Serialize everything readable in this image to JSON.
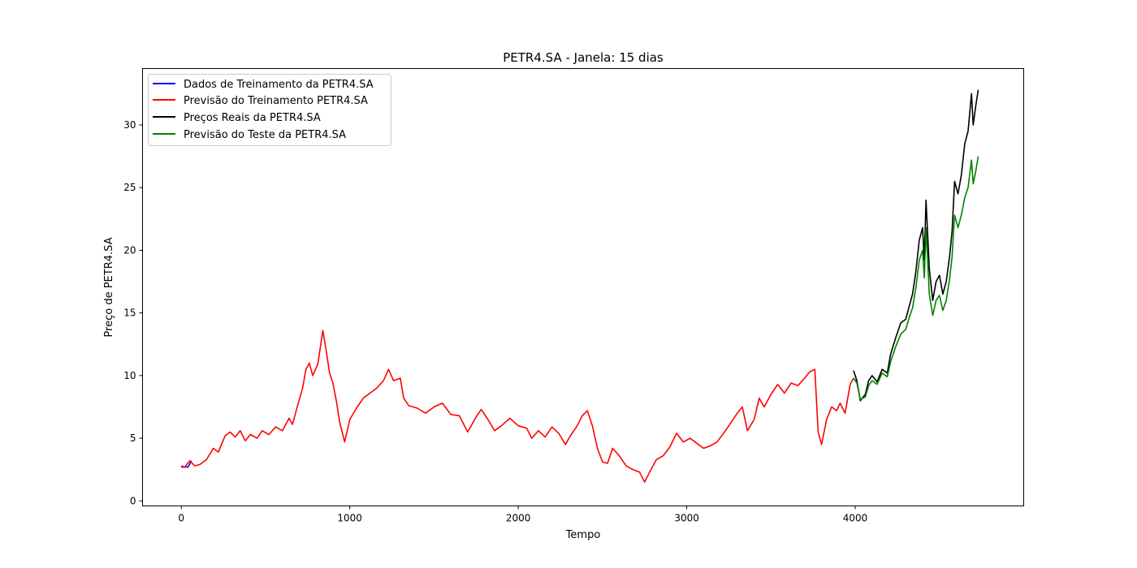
{
  "chart_data": {
    "type": "line",
    "title": "PETR4.SA - Janela: 15 dias",
    "xlabel": "Tempo",
    "ylabel": "Preço de PETR4.SA",
    "xlim": [
      -230,
      5000
    ],
    "ylim": [
      -0.4,
      34.5
    ],
    "xticks": [
      0,
      1000,
      2000,
      3000,
      4000
    ],
    "yticks": [
      0,
      5,
      10,
      15,
      20,
      25,
      30
    ],
    "grid": false,
    "legend_position": "top-left",
    "series": [
      {
        "name": "Dados de Treinamento da PETR4.SA",
        "color": "#0000ff",
        "points": [
          [
            0,
            2.7
          ],
          [
            40,
            2.7
          ],
          [
            60,
            3.2
          ]
        ]
      },
      {
        "name": "Previsão do Treinamento PETR4.SA",
        "color": "#ff0000",
        "points": [
          [
            0,
            2.8
          ],
          [
            20,
            2.7
          ],
          [
            50,
            3.2
          ],
          [
            80,
            2.8
          ],
          [
            110,
            2.9
          ],
          [
            150,
            3.3
          ],
          [
            190,
            4.2
          ],
          [
            220,
            3.9
          ],
          [
            260,
            5.2
          ],
          [
            290,
            5.5
          ],
          [
            320,
            5.1
          ],
          [
            350,
            5.6
          ],
          [
            380,
            4.8
          ],
          [
            410,
            5.3
          ],
          [
            450,
            5.0
          ],
          [
            480,
            5.6
          ],
          [
            520,
            5.3
          ],
          [
            560,
            5.9
          ],
          [
            600,
            5.6
          ],
          [
            640,
            6.6
          ],
          [
            660,
            6.1
          ],
          [
            690,
            7.6
          ],
          [
            720,
            9.0
          ],
          [
            740,
            10.5
          ],
          [
            760,
            11.0
          ],
          [
            780,
            10.0
          ],
          [
            810,
            10.9
          ],
          [
            840,
            13.6
          ],
          [
            860,
            12.0
          ],
          [
            880,
            10.2
          ],
          [
            900,
            9.4
          ],
          [
            920,
            8.0
          ],
          [
            940,
            6.3
          ],
          [
            970,
            4.7
          ],
          [
            1000,
            6.5
          ],
          [
            1040,
            7.4
          ],
          [
            1080,
            8.2
          ],
          [
            1120,
            8.6
          ],
          [
            1160,
            9.0
          ],
          [
            1200,
            9.6
          ],
          [
            1230,
            10.5
          ],
          [
            1260,
            9.6
          ],
          [
            1300,
            9.8
          ],
          [
            1320,
            8.2
          ],
          [
            1350,
            7.6
          ],
          [
            1400,
            7.4
          ],
          [
            1450,
            7.0
          ],
          [
            1500,
            7.5
          ],
          [
            1550,
            7.8
          ],
          [
            1600,
            6.9
          ],
          [
            1650,
            6.8
          ],
          [
            1700,
            5.5
          ],
          [
            1750,
            6.7
          ],
          [
            1780,
            7.3
          ],
          [
            1820,
            6.5
          ],
          [
            1860,
            5.6
          ],
          [
            1900,
            6.0
          ],
          [
            1950,
            6.6
          ],
          [
            2000,
            6.0
          ],
          [
            2050,
            5.8
          ],
          [
            2080,
            5.0
          ],
          [
            2120,
            5.6
          ],
          [
            2160,
            5.1
          ],
          [
            2200,
            5.9
          ],
          [
            2240,
            5.4
          ],
          [
            2280,
            4.5
          ],
          [
            2310,
            5.2
          ],
          [
            2350,
            6.0
          ],
          [
            2380,
            6.8
          ],
          [
            2410,
            7.2
          ],
          [
            2440,
            6.0
          ],
          [
            2470,
            4.2
          ],
          [
            2500,
            3.1
          ],
          [
            2530,
            3.0
          ],
          [
            2560,
            4.2
          ],
          [
            2600,
            3.6
          ],
          [
            2640,
            2.8
          ],
          [
            2680,
            2.5
          ],
          [
            2720,
            2.3
          ],
          [
            2750,
            1.5
          ],
          [
            2780,
            2.3
          ],
          [
            2820,
            3.3
          ],
          [
            2860,
            3.6
          ],
          [
            2900,
            4.3
          ],
          [
            2940,
            5.4
          ],
          [
            2980,
            4.7
          ],
          [
            3020,
            5.0
          ],
          [
            3060,
            4.6
          ],
          [
            3100,
            4.2
          ],
          [
            3140,
            4.4
          ],
          [
            3180,
            4.7
          ],
          [
            3230,
            5.6
          ],
          [
            3260,
            6.2
          ],
          [
            3300,
            7.0
          ],
          [
            3330,
            7.5
          ],
          [
            3360,
            5.6
          ],
          [
            3400,
            6.5
          ],
          [
            3430,
            8.2
          ],
          [
            3460,
            7.5
          ],
          [
            3500,
            8.5
          ],
          [
            3540,
            9.3
          ],
          [
            3580,
            8.6
          ],
          [
            3620,
            9.4
          ],
          [
            3660,
            9.2
          ],
          [
            3700,
            9.8
          ],
          [
            3730,
            10.3
          ],
          [
            3760,
            10.5
          ],
          [
            3780,
            5.5
          ],
          [
            3800,
            4.5
          ],
          [
            3830,
            6.5
          ],
          [
            3860,
            7.5
          ],
          [
            3890,
            7.2
          ],
          [
            3910,
            7.8
          ],
          [
            3940,
            7.0
          ],
          [
            3970,
            9.3
          ],
          [
            3990,
            9.8
          ]
        ]
      },
      {
        "name": "Preços Reais da PETR4.SA",
        "color": "#000000",
        "points": [
          [
            3990,
            10.4
          ],
          [
            4010,
            9.6
          ],
          [
            4030,
            8.0
          ],
          [
            4060,
            8.5
          ],
          [
            4080,
            9.6
          ],
          [
            4100,
            10.0
          ],
          [
            4130,
            9.5
          ],
          [
            4160,
            10.5
          ],
          [
            4190,
            10.2
          ],
          [
            4210,
            11.7
          ],
          [
            4240,
            13.0
          ],
          [
            4270,
            14.2
          ],
          [
            4300,
            14.5
          ],
          [
            4320,
            15.5
          ],
          [
            4340,
            16.5
          ],
          [
            4360,
            18.3
          ],
          [
            4380,
            20.8
          ],
          [
            4400,
            21.8
          ],
          [
            4410,
            19.2
          ],
          [
            4420,
            24.0
          ],
          [
            4440,
            18.5
          ],
          [
            4460,
            16.0
          ],
          [
            4480,
            17.5
          ],
          [
            4500,
            18.0
          ],
          [
            4520,
            16.5
          ],
          [
            4540,
            17.5
          ],
          [
            4560,
            19.5
          ],
          [
            4575,
            21.5
          ],
          [
            4590,
            25.5
          ],
          [
            4610,
            24.5
          ],
          [
            4630,
            26.0
          ],
          [
            4650,
            28.5
          ],
          [
            4670,
            29.5
          ],
          [
            4690,
            32.5
          ],
          [
            4700,
            30.0
          ],
          [
            4715,
            31.5
          ],
          [
            4730,
            32.8
          ]
        ]
      },
      {
        "name": "Previsão do Teste da PETR4.SA",
        "color": "#008000",
        "points": [
          [
            3990,
            9.8
          ],
          [
            4010,
            9.4
          ],
          [
            4030,
            8.1
          ],
          [
            4060,
            8.3
          ],
          [
            4080,
            9.2
          ],
          [
            4100,
            9.6
          ],
          [
            4130,
            9.3
          ],
          [
            4160,
            10.2
          ],
          [
            4190,
            9.9
          ],
          [
            4210,
            11.1
          ],
          [
            4240,
            12.3
          ],
          [
            4270,
            13.3
          ],
          [
            4300,
            13.7
          ],
          [
            4320,
            14.6
          ],
          [
            4340,
            15.4
          ],
          [
            4360,
            17.0
          ],
          [
            4380,
            19.2
          ],
          [
            4400,
            20.0
          ],
          [
            4410,
            17.8
          ],
          [
            4420,
            21.8
          ],
          [
            4440,
            16.5
          ],
          [
            4460,
            14.8
          ],
          [
            4480,
            16.0
          ],
          [
            4500,
            16.4
          ],
          [
            4520,
            15.2
          ],
          [
            4540,
            16.0
          ],
          [
            4560,
            17.7
          ],
          [
            4575,
            19.5
          ],
          [
            4590,
            22.8
          ],
          [
            4610,
            21.8
          ],
          [
            4630,
            22.8
          ],
          [
            4650,
            24.2
          ],
          [
            4670,
            25.0
          ],
          [
            4690,
            27.2
          ],
          [
            4700,
            25.3
          ],
          [
            4715,
            26.3
          ],
          [
            4730,
            27.5
          ]
        ]
      }
    ]
  }
}
